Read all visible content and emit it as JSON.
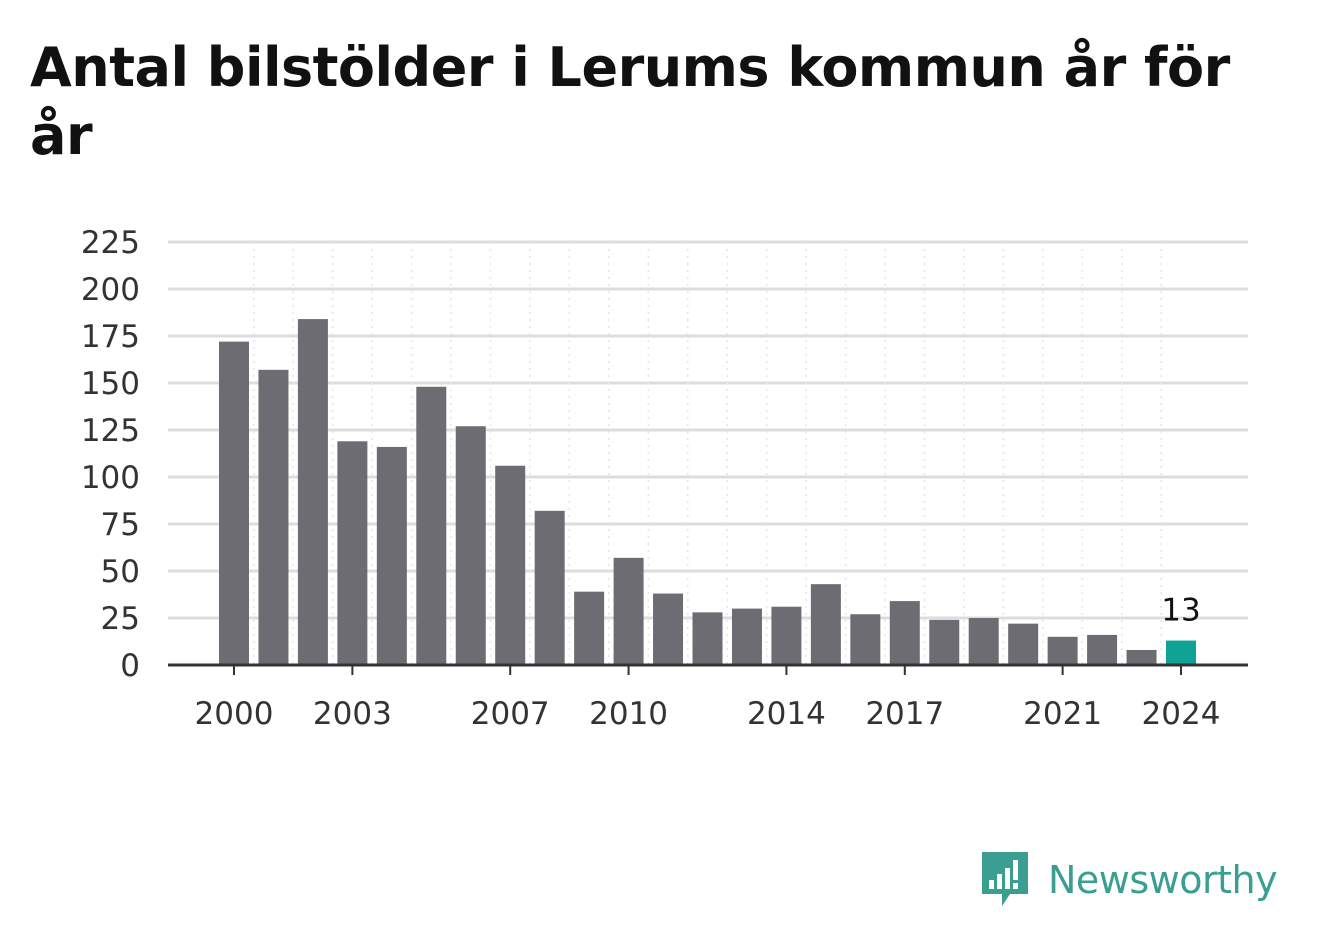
{
  "title": "Antal bilstölder i Lerums kommun år för år",
  "brand": {
    "name": "Newsworthy",
    "icon": "newsworthy-logo-icon",
    "color": "#3a9e93"
  },
  "colors": {
    "bar": "#6d6c72",
    "highlight": "#0fa396",
    "grid": "#dddddd",
    "axis": "#333333"
  },
  "chart_data": {
    "type": "bar",
    "title": "Antal bilstölder i Lerums kommun år för år",
    "xlabel": "",
    "ylabel": "",
    "categories": [
      "2000",
      "2001",
      "2002",
      "2003",
      "2004",
      "2005",
      "2006",
      "2007",
      "2008",
      "2009",
      "2010",
      "2011",
      "2012",
      "2013",
      "2014",
      "2015",
      "2016",
      "2017",
      "2018",
      "2019",
      "2020",
      "2021",
      "2022",
      "2023",
      "2024"
    ],
    "values": [
      172,
      157,
      184,
      119,
      116,
      148,
      127,
      106,
      82,
      39,
      57,
      38,
      28,
      30,
      31,
      43,
      27,
      34,
      24,
      25,
      22,
      15,
      16,
      8,
      13
    ],
    "x_tick_labels": [
      "2000",
      "2003",
      "2007",
      "2010",
      "2014",
      "2017",
      "2021",
      "2024"
    ],
    "y_ticks": [
      0,
      25,
      50,
      75,
      100,
      125,
      150,
      175,
      200,
      225
    ],
    "ylim": [
      0,
      225
    ],
    "grid": true,
    "legend": "none",
    "highlight": {
      "category": "2024",
      "label": "13"
    }
  }
}
